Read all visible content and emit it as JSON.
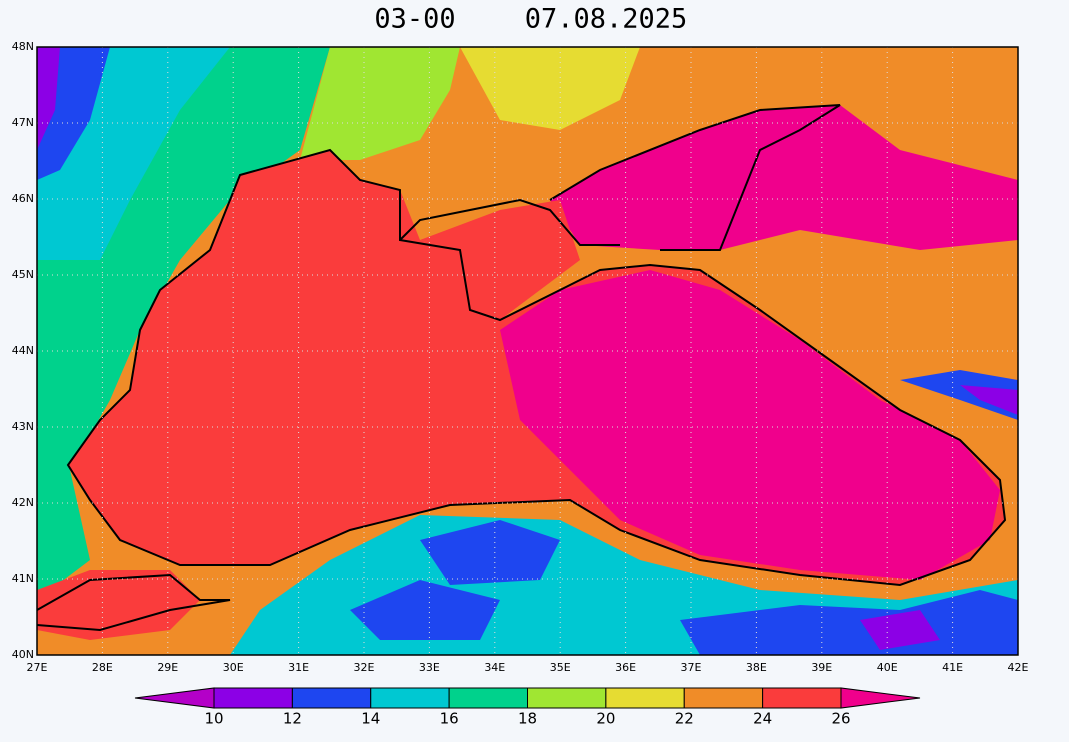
{
  "title": {
    "time": "03-00",
    "date": "07.08.2025"
  },
  "map": {
    "lat_ticks": [
      {
        "value": 48,
        "label": "48N"
      },
      {
        "value": 47,
        "label": "47N"
      },
      {
        "value": 46,
        "label": "46N"
      },
      {
        "value": 45,
        "label": "45N"
      },
      {
        "value": 44,
        "label": "44N"
      },
      {
        "value": 43,
        "label": "43N"
      },
      {
        "value": 42,
        "label": "42N"
      },
      {
        "value": 41,
        "label": "41N"
      },
      {
        "value": 40,
        "label": "40N"
      }
    ],
    "lon_ticks": [
      {
        "value": 27,
        "label": "27E"
      },
      {
        "value": 28,
        "label": "28E"
      },
      {
        "value": 29,
        "label": "29E"
      },
      {
        "value": 30,
        "label": "30E"
      },
      {
        "value": 31,
        "label": "31E"
      },
      {
        "value": 32,
        "label": "32E"
      },
      {
        "value": 33,
        "label": "33E"
      },
      {
        "value": 34,
        "label": "34E"
      },
      {
        "value": 35,
        "label": "35E"
      },
      {
        "value": 36,
        "label": "36E"
      },
      {
        "value": 37,
        "label": "37E"
      },
      {
        "value": 38,
        "label": "38E"
      },
      {
        "value": 39,
        "label": "39E"
      },
      {
        "value": 40,
        "label": "40E"
      },
      {
        "value": 41,
        "label": "41E"
      },
      {
        "value": 42,
        "label": "42E"
      }
    ]
  },
  "colorbar": {
    "levels": [
      10,
      12,
      14,
      16,
      18,
      20,
      22,
      24,
      26
    ],
    "colors": [
      "#b400c8",
      "#8c00e6",
      "#1e46f0",
      "#00c8d2",
      "#00d28c",
      "#a0e632",
      "#e6dc32",
      "#f08c28",
      "#fa3c3c",
      "#f0008c"
    ]
  }
}
